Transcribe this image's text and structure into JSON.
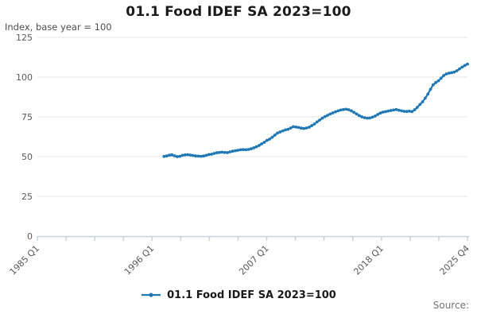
{
  "header": {
    "title": "01.1 Food IDEF SA 2023=100",
    "y_axis_note": "Index, base year = 100"
  },
  "legend": {
    "label": "01.1 Food IDEF SA 2023=100"
  },
  "footer": {
    "source_label": "Source:"
  },
  "colors": {
    "series": "#1f77b4",
    "grid": "#e4e4e4",
    "axis": "#c7d2dc",
    "tick_text": "#595959",
    "title_text": "#1a1a1a",
    "source_text": "#737373"
  },
  "chart_data": {
    "type": "line",
    "title": "01.1 Food IDEF SA 2023=100",
    "ylabel": "Index, base year = 100",
    "ylim": [
      0,
      125
    ],
    "y_ticks": [
      0,
      25,
      50,
      75,
      100,
      125
    ],
    "x_axis": {
      "start": "1985 Q1",
      "end": "2025 Q4",
      "frequency": "quarterly",
      "total_quarters": 164,
      "tick_count": 16,
      "labeled_ticks": [
        {
          "index": 0,
          "label": "1985 Q1"
        },
        {
          "index": 4,
          "label": "1996 Q1"
        },
        {
          "index": 8,
          "label": "2007 Q1"
        },
        {
          "index": 12,
          "label": "2018 Q1"
        },
        {
          "index": 15,
          "label": "2025 Q4"
        }
      ]
    },
    "grid": "horizontal",
    "legend_position": "bottom",
    "series": [
      {
        "name": "01.1 Food IDEF SA 2023=100",
        "color": "#1f77b4",
        "marker": "circle",
        "data_start": "1997 Q1",
        "start_quarter_index": 48,
        "values": [
          50.1,
          50.4,
          50.9,
          51.1,
          50.5,
          50.0,
          50.2,
          50.8,
          51.1,
          51.2,
          51.0,
          50.7,
          50.4,
          50.3,
          50.2,
          50.4,
          50.8,
          51.3,
          51.5,
          52.0,
          52.4,
          52.6,
          52.8,
          52.6,
          52.5,
          53.0,
          53.4,
          53.7,
          54.0,
          54.3,
          54.4,
          54.3,
          54.5,
          54.9,
          55.5,
          56.2,
          57.0,
          58.0,
          59.0,
          60.2,
          61.0,
          62.2,
          63.5,
          64.8,
          65.5,
          66.2,
          66.8,
          67.2,
          68.0,
          68.8,
          68.6,
          68.3,
          67.9,
          67.7,
          68.0,
          68.5,
          69.5,
          70.5,
          71.8,
          73.0,
          74.2,
          75.2,
          76.0,
          76.8,
          77.5,
          78.2,
          78.8,
          79.3,
          79.6,
          79.8,
          79.5,
          78.8,
          77.8,
          76.8,
          75.8,
          75.0,
          74.5,
          74.2,
          74.3,
          74.8,
          75.5,
          76.5,
          77.4,
          78.0,
          78.3,
          78.7,
          79.0,
          79.3,
          79.6,
          79.2,
          78.8,
          78.5,
          78.4,
          78.6,
          78.3,
          79.5,
          81.0,
          82.8,
          84.5,
          86.8,
          89.3,
          92.3,
          95.2,
          96.6,
          97.7,
          99.3,
          101.0,
          102.0,
          102.5,
          102.8,
          103.2,
          104.0,
          105.2,
          106.3,
          107.3,
          108.2
        ]
      }
    ]
  }
}
